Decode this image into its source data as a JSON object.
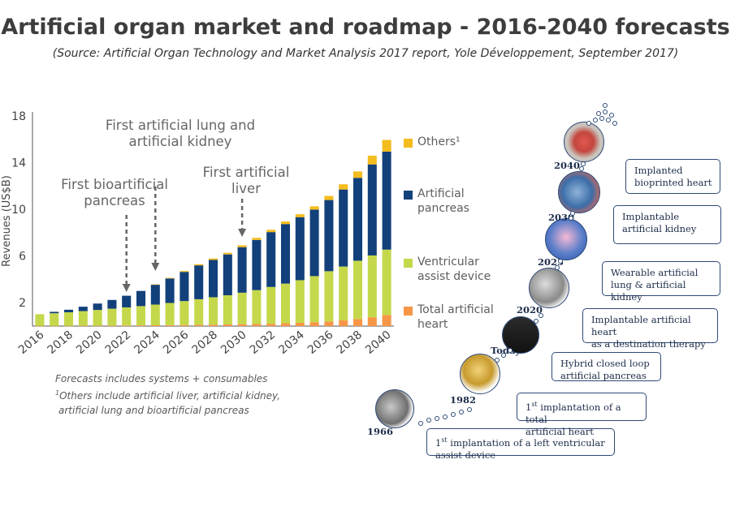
{
  "title": "Artificial organ market and roadmap - 2016-2040 forecasts",
  "source": "(Source: Artificial Organ Technology and Market Analysis 2017 report, Yole Développement, September 2017)",
  "chart_data": {
    "type": "bar",
    "stacked": true,
    "ylabel": "Revenues (US$B)",
    "ylim": [
      0,
      18
    ],
    "yticks": [
      2,
      6,
      10,
      14,
      18
    ],
    "categories": [
      "2016",
      "2017",
      "2018",
      "2019",
      "2020",
      "2021",
      "2022",
      "2023",
      "2024",
      "2025",
      "2026",
      "2027",
      "2028",
      "2029",
      "2030",
      "2031",
      "2032",
      "2033",
      "2034",
      "2035",
      "2036",
      "2037",
      "2038",
      "2039",
      "2040"
    ],
    "xtick_labels": [
      "2016",
      "2018",
      "2020",
      "2022",
      "2024",
      "2026",
      "2028",
      "2030",
      "2032",
      "2034",
      "2036",
      "2038",
      "2040"
    ],
    "series": [
      {
        "name": "Total artificial heart",
        "color": "#f79646",
        "values": [
          0.02,
          0.02,
          0.02,
          0.03,
          0.03,
          0.04,
          0.05,
          0.06,
          0.07,
          0.08,
          0.09,
          0.1,
          0.12,
          0.14,
          0.16,
          0.18,
          0.2,
          0.24,
          0.28,
          0.33,
          0.4,
          0.5,
          0.6,
          0.75,
          0.95
        ]
      },
      {
        "name": "Ventricular assist device",
        "color": "#c5d84b",
        "values": [
          1.0,
          1.08,
          1.16,
          1.25,
          1.35,
          1.45,
          1.55,
          1.65,
          1.77,
          1.9,
          2.05,
          2.2,
          2.35,
          2.5,
          2.7,
          2.9,
          3.15,
          3.4,
          3.65,
          3.95,
          4.3,
          4.6,
          5.0,
          5.3,
          5.6
        ]
      },
      {
        "name": "Artificial pancreas",
        "color": "#12407b",
        "values": [
          0,
          0.12,
          0.22,
          0.38,
          0.55,
          0.75,
          1.0,
          1.3,
          1.7,
          2.1,
          2.5,
          2.9,
          3.2,
          3.5,
          3.9,
          4.3,
          4.7,
          5.1,
          5.4,
          5.7,
          6.1,
          6.6,
          7.1,
          7.8,
          8.4
        ]
      },
      {
        "name": "Others",
        "legend": "Others¹",
        "color": "#f4bc1c",
        "values": [
          0,
          0,
          0,
          0,
          0,
          0,
          0,
          0,
          0.03,
          0.05,
          0.08,
          0.1,
          0.12,
          0.14,
          0.16,
          0.18,
          0.2,
          0.22,
          0.25,
          0.28,
          0.35,
          0.45,
          0.55,
          0.75,
          1.0
        ]
      }
    ],
    "annotations": [
      {
        "text": [
          "First bioartificial",
          "pancreas"
        ],
        "x": "2022"
      },
      {
        "text": [
          "First artificial lung and",
          "artificial kidney"
        ],
        "x": "2024"
      },
      {
        "text": [
          "First artificial",
          "liver"
        ],
        "x": "2030"
      }
    ],
    "grid": false,
    "legend": "right"
  },
  "notes": {
    "line1": "Forecasts includes systems + consumables",
    "line2_mark": "1",
    "line2": "Others include artificial liver, artificial kidney,",
    "line3": "artificial lung and bioartificial pancreas"
  },
  "roadmap": [
    {
      "year": "1966",
      "line1_pre": "1",
      "line1_sup": "st",
      "line1_post": " implantation of a left ventricular",
      "line2": "assist device",
      "icon": "ventricular-device-icon"
    },
    {
      "year": "1982",
      "line1_pre": "1",
      "line1_sup": "st",
      "line1_post": " implantation of a total",
      "line2": "artificial heart",
      "icon": "artificial-heart-icon"
    },
    {
      "year": "Today",
      "line1_pre": "Hybrid closed loop",
      "line1_sup": "",
      "line1_post": "",
      "line2": "artificial pancreas",
      "icon": "insulin-pump-icon"
    },
    {
      "year": "2020",
      "line1_pre": "Implantable artificial heart",
      "line1_sup": "",
      "line1_post": "",
      "line2": "as a destination therapy",
      "icon": "implantable-heart-icon"
    },
    {
      "year": "2025",
      "line1_pre": "Wearable artificial",
      "line1_sup": "",
      "line1_post": "",
      "line2": "lung & artificial kidney",
      "icon": "lung-icon"
    },
    {
      "year": "2030",
      "line1_pre": "Implantable",
      "line1_sup": "",
      "line1_post": "",
      "line2": "artificial kidney",
      "icon": "kidney-icon"
    },
    {
      "year": "2040",
      "line1_pre": "Implanted",
      "line1_sup": "",
      "line1_post": "",
      "line2": "bioprinted heart",
      "icon": "bioprinted-heart-icon"
    }
  ]
}
